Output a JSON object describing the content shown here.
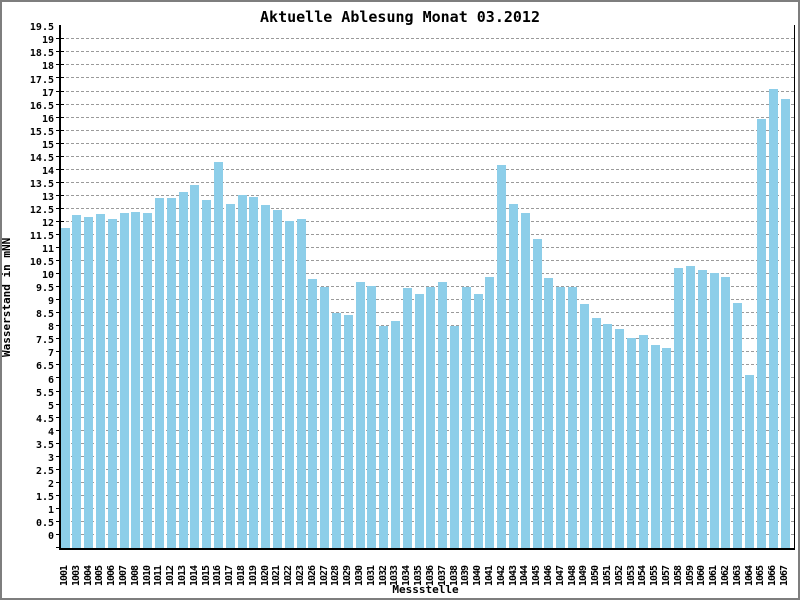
{
  "chart_data": {
    "type": "bar",
    "title": "Aktuelle Ablesung Monat 03.2012",
    "xlabel": "Messstelle",
    "ylabel": "Wasserstand in mNN",
    "ylim": [
      0,
      20.05
    ],
    "ytick_step": 0.5,
    "ytick_min": 0,
    "ytick_max": 19.5,
    "grid": "horizontal-dashed",
    "legend": "none",
    "bar_color": "#8dcee9",
    "grid_color": "#9a9a9a",
    "categories": [
      "1001",
      "1003",
      "1004",
      "1005",
      "1006",
      "1007",
      "1008",
      "1010",
      "1011",
      "1012",
      "1013",
      "1014",
      "1015",
      "1016",
      "1017",
      "1018",
      "1019",
      "1020",
      "1021",
      "1022",
      "1023",
      "1026",
      "1027",
      "1028",
      "1029",
      "1030",
      "1031",
      "1032",
      "1033",
      "1034",
      "1035",
      "1036",
      "1037",
      "1038",
      "1039",
      "1040",
      "1041",
      "1042",
      "1043",
      "1044",
      "1045",
      "1046",
      "1047",
      "1048",
      "1049",
      "1050",
      "1051",
      "1052",
      "1053",
      "1054",
      "1055",
      "1057",
      "1058",
      "1059",
      "1060",
      "1061",
      "1062",
      "1063",
      "1064",
      "1065",
      "1066",
      "1067"
    ],
    "values": [
      12.25,
      12.75,
      12.7,
      12.8,
      12.6,
      12.85,
      12.9,
      12.85,
      13.4,
      13.4,
      13.65,
      13.9,
      13.35,
      14.8,
      13.2,
      13.55,
      13.45,
      13.15,
      12.95,
      12.55,
      12.6,
      10.3,
      10.0,
      9.0,
      8.95,
      10.2,
      10.05,
      8.5,
      8.7,
      9.95,
      9.75,
      10.0,
      10.2,
      8.5,
      10.0,
      9.75,
      10.4,
      14.7,
      13.2,
      12.85,
      11.85,
      10.35,
      10.0,
      10.0,
      9.35,
      8.8,
      8.6,
      8.4,
      8.05,
      8.15,
      7.8,
      7.65,
      10.75,
      10.8,
      10.65,
      10.55,
      10.4,
      9.4,
      6.65,
      16.45,
      17.6,
      17.2
    ]
  }
}
